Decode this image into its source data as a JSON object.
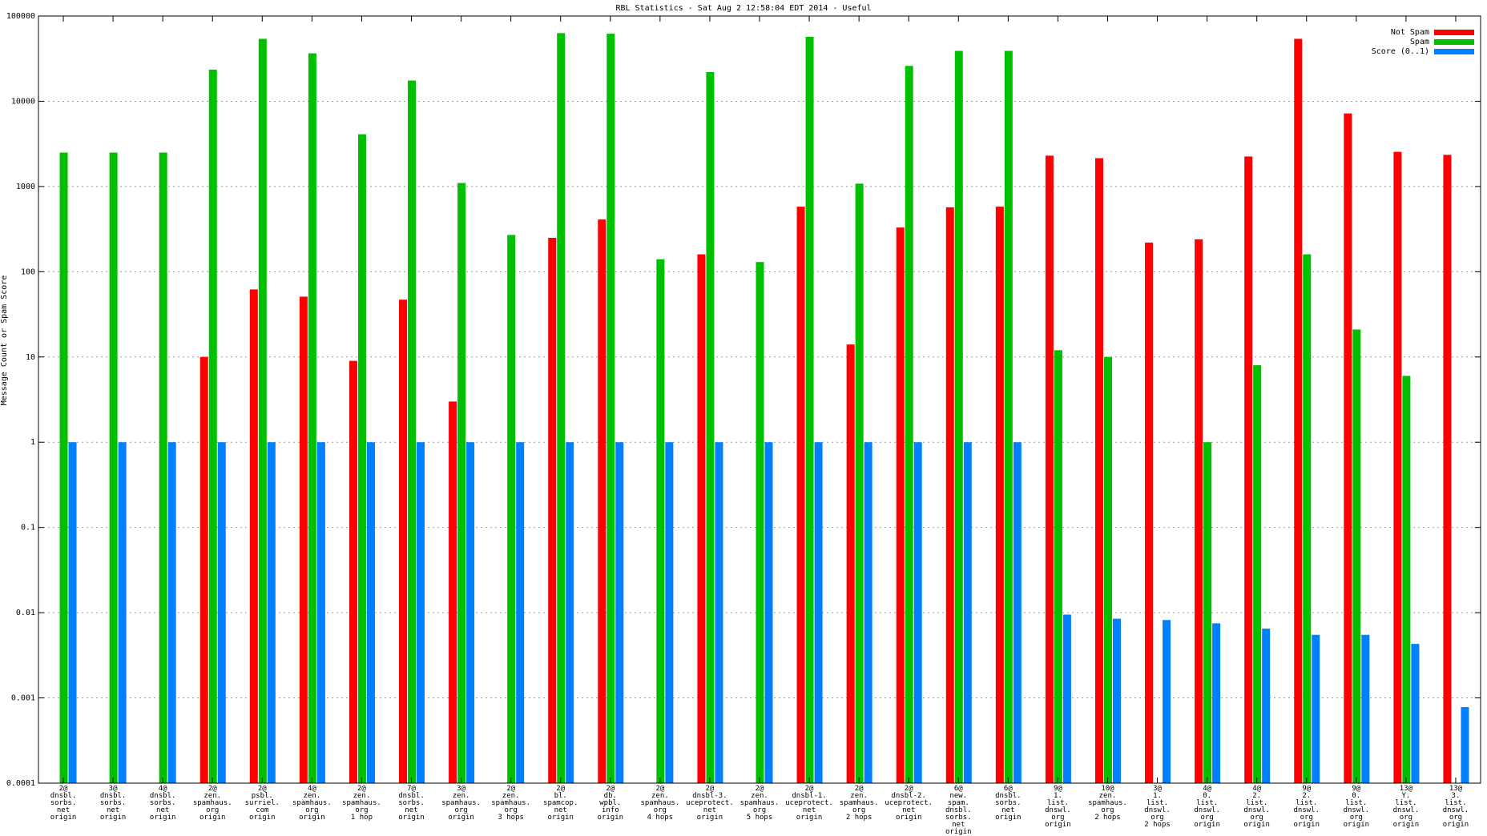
{
  "chart_data": {
    "type": "bar",
    "title": "RBL Statistics - Sat Aug  2 12:58:04 EDT 2014 - Useful",
    "ylabel": "Message Count or Spam Score",
    "xlabel": "",
    "yscale": "log",
    "ylim": [
      0.0001,
      100000
    ],
    "grid": true,
    "legend_position": "top-right",
    "y_ticks": [
      "0.0001",
      "0.001",
      "0.01",
      "0.1",
      "1",
      "10",
      "100",
      "1000",
      "10000",
      "100000"
    ],
    "categories": [
      [
        "2@",
        "dnsbl.",
        "sorbs.",
        "net",
        "origin"
      ],
      [
        "3@",
        "dnsbl.",
        "sorbs.",
        "net",
        "origin"
      ],
      [
        "4@",
        "dnsbl.",
        "sorbs.",
        "net",
        "origin"
      ],
      [
        "2@",
        "zen.",
        "spamhaus.",
        "org",
        "origin"
      ],
      [
        "2@",
        "psbl.",
        "surriel.",
        "com",
        "origin"
      ],
      [
        "4@",
        "zen.",
        "spamhaus.",
        "org",
        "origin"
      ],
      [
        "2@",
        "zen.",
        "spamhaus.",
        "org",
        "1 hop"
      ],
      [
        "7@",
        "dnsbl.",
        "sorbs.",
        "net",
        "origin"
      ],
      [
        "3@",
        "zen.",
        "spamhaus.",
        "org",
        "origin"
      ],
      [
        "2@",
        "zen.",
        "spamhaus.",
        "org",
        "3 hops"
      ],
      [
        "2@",
        "bl.",
        "spamcop.",
        "net",
        "origin"
      ],
      [
        "2@",
        "db.",
        "wpbl.",
        "info",
        "origin"
      ],
      [
        "2@",
        "zen.",
        "spamhaus.",
        "org",
        "4 hops"
      ],
      [
        "2@",
        "dnsbl-3.",
        "uceprotect.",
        "net",
        "origin"
      ],
      [
        "2@",
        "zen.",
        "spamhaus.",
        "org",
        "5 hops"
      ],
      [
        "2@",
        "dnsbl-1.",
        "uceprotect.",
        "net",
        "origin"
      ],
      [
        "2@",
        "zen.",
        "spamhaus.",
        "org",
        "2 hops"
      ],
      [
        "2@",
        "dnsbl-2.",
        "uceprotect.",
        "net",
        "origin"
      ],
      [
        "6@",
        "new.",
        "spam.",
        "dnsbl.",
        "sorbs.",
        "net",
        "origin"
      ],
      [
        "6@",
        "dnsbl.",
        "sorbs.",
        "net",
        "origin"
      ],
      [
        "9@",
        "1.",
        "list.",
        "dnswl.",
        "org",
        "origin"
      ],
      [
        "10@",
        "zen.",
        "spamhaus.",
        "org",
        "2 hops"
      ],
      [
        "3@",
        "1.",
        "list.",
        "dnswl.",
        "org",
        "2 hops"
      ],
      [
        "4@",
        "0.",
        "list.",
        "dnswl.",
        "org",
        "origin"
      ],
      [
        "4@",
        "2.",
        "list.",
        "dnswl.",
        "org",
        "origin"
      ],
      [
        "9@",
        "2.",
        "list.",
        "dnswl.",
        "org",
        "origin"
      ],
      [
        "9@",
        "0.",
        "list.",
        "dnswl.",
        "org",
        "origin"
      ],
      [
        "13@",
        "Y.",
        "list.",
        "dnswl.",
        "org",
        "origin"
      ],
      [
        "13@",
        "3.",
        "list.",
        "dnswl.",
        "org",
        "origin"
      ]
    ],
    "series": [
      {
        "name": "Not Spam",
        "color": "#ff0000",
        "values": [
          null,
          null,
          null,
          10,
          62,
          51,
          9,
          47,
          3,
          null,
          250,
          410,
          null,
          160,
          null,
          580,
          14,
          330,
          570,
          580,
          2300,
          2150,
          220,
          240,
          2250,
          54000,
          7200,
          2550,
          2350
        ]
      },
      {
        "name": "Spam",
        "color": "#00c000",
        "values": [
          2500,
          2500,
          2500,
          23500,
          54000,
          36500,
          4100,
          17500,
          1100,
          270,
          63000,
          62000,
          140,
          22000,
          130,
          57000,
          1080,
          26000,
          39000,
          39000,
          12,
          10,
          null,
          1,
          8,
          160,
          21,
          6,
          null
        ]
      },
      {
        "name": "Score (0..1)",
        "color": "#0080ff",
        "values": [
          1,
          1,
          1,
          1,
          1,
          1,
          1,
          1,
          1,
          1,
          1,
          1,
          1,
          1,
          1,
          1,
          1,
          1,
          1,
          1,
          0.0095,
          0.0085,
          0.0082,
          0.0075,
          0.0065,
          0.0055,
          0.0055,
          0.0043,
          0.00078
        ]
      }
    ]
  }
}
